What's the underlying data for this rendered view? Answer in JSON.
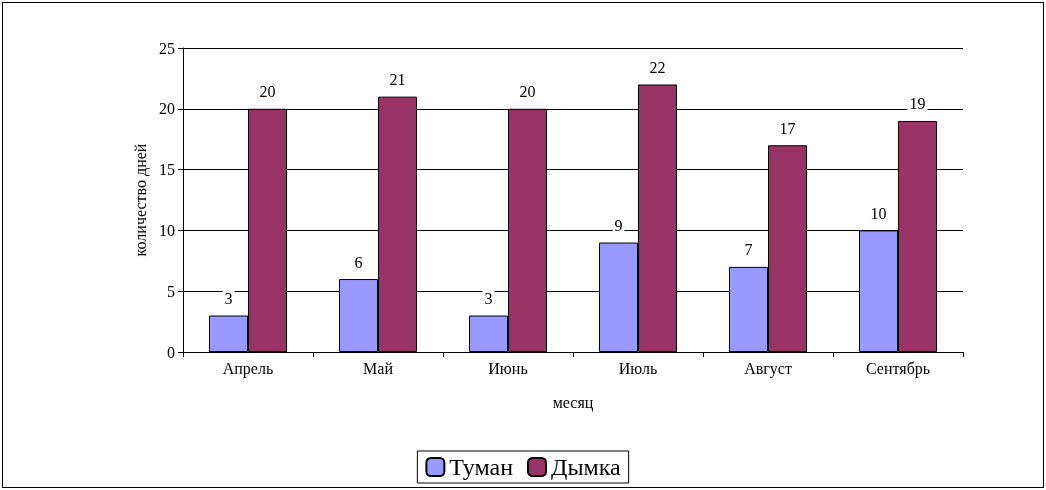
{
  "chart_data": {
    "type": "bar",
    "xlabel": "месяц",
    "ylabel": "количество дней",
    "categories": [
      "Апрель",
      "Май",
      "Июнь",
      "Июль",
      "Август",
      "Сентябрь"
    ],
    "series": [
      {
        "name": "Туман",
        "color": "#9999ff",
        "values": [
          3,
          6,
          3,
          9,
          7,
          10
        ]
      },
      {
        "name": "Дымка",
        "color": "#993366",
        "values": [
          20,
          21,
          20,
          22,
          17,
          19
        ]
      }
    ],
    "ylim": [
      0,
      25
    ],
    "yticks": [
      0,
      5,
      10,
      15,
      20,
      25
    ],
    "grid": "y",
    "legend": "bottom",
    "data_labels": true
  }
}
